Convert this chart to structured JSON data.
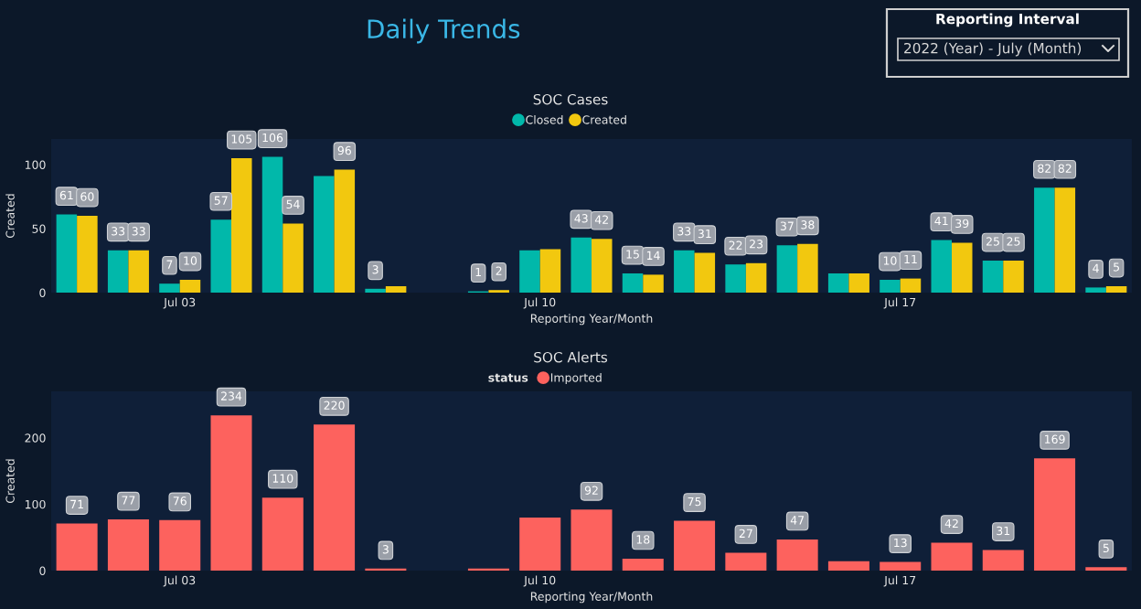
{
  "chart_data": [
    {
      "type": "other",
      "title": "Daily Trends",
      "annotations": [
        "Reporting Interval",
        "2022 (Year) - July (Month)"
      ]
    },
    {
      "type": "bar",
      "title": "SOC Cases",
      "xlabel": "Reporting Year/Month",
      "ylabel": "Created",
      "categories": [
        null,
        null,
        "Jul 03",
        null,
        null,
        null,
        null,
        null,
        null,
        "Jul 10",
        null,
        null,
        null,
        null,
        null,
        null,
        "Jul 17",
        null,
        null,
        null,
        null
      ],
      "series": [
        {
          "name": "Closed",
          "color": "#01b8aa",
          "values": [
            61,
            33,
            7,
            57,
            106,
            91,
            3,
            null,
            1,
            33,
            43,
            15,
            33,
            22,
            37,
            15,
            10,
            41,
            25,
            82,
            4
          ],
          "value_labels": [
            "61",
            "33",
            "7",
            "57",
            "106",
            null,
            "3",
            null,
            "1",
            null,
            "43",
            "15",
            "33",
            "22",
            "37",
            null,
            "10",
            "41",
            "25",
            "82",
            "4"
          ]
        },
        {
          "name": "Created",
          "color": "#f2c80f",
          "values": [
            60,
            33,
            10,
            105,
            54,
            96,
            5,
            null,
            2,
            34,
            42,
            14,
            31,
            23,
            38,
            15,
            11,
            39,
            25,
            82,
            5
          ],
          "value_labels": [
            "60",
            "33",
            "10",
            "105",
            "54",
            "96",
            null,
            null,
            "2",
            null,
            "42",
            "14",
            "31",
            "23",
            "38",
            null,
            "11",
            "39",
            "25",
            "82",
            "5"
          ]
        }
      ],
      "ylim": [
        0,
        120
      ],
      "yticks": [
        0,
        50,
        100
      ],
      "grid": false,
      "legend": "top"
    },
    {
      "type": "bar",
      "title": "SOC Alerts",
      "xlabel": "Reporting Year/Month",
      "ylabel": "Created",
      "legend_title": "status",
      "categories": [
        null,
        null,
        "Jul 03",
        null,
        null,
        null,
        null,
        null,
        null,
        "Jul 10",
        null,
        null,
        null,
        null,
        null,
        null,
        "Jul 17",
        null,
        null,
        null,
        null
      ],
      "series": [
        {
          "name": "Imported",
          "color": "#fd625e",
          "values": [
            71,
            77,
            76,
            234,
            110,
            220,
            3,
            null,
            3,
            80,
            92,
            18,
            75,
            27,
            47,
            14,
            13,
            42,
            31,
            169,
            5
          ],
          "value_labels": [
            "71",
            "77",
            "76",
            "234",
            "110",
            "220",
            "3",
            null,
            null,
            null,
            "92",
            "18",
            "75",
            "27",
            "47",
            null,
            "13",
            "42",
            "31",
            "169",
            "5"
          ]
        }
      ],
      "ylim": [
        0,
        270
      ],
      "yticks": [
        0,
        100,
        200
      ],
      "grid": false,
      "legend": "top"
    }
  ]
}
